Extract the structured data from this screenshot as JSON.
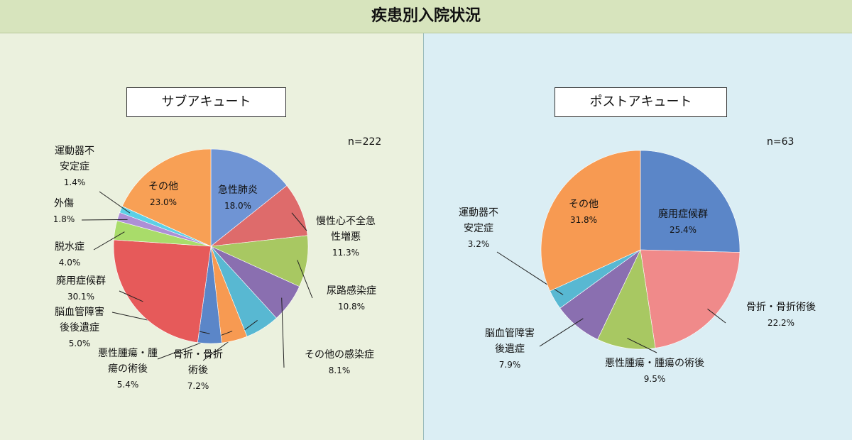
{
  "title": "疾患別入院状況",
  "chart_data": [
    {
      "type": "pie",
      "title": "サブアキュート",
      "note": "n=222",
      "categories": [
        "急性肺炎",
        "慢性心不全急\n性増悪",
        "尿路感染症",
        "その他の感染症",
        "骨折・骨折\n術後",
        "悪性腫瘍・腫\n瘍の術後",
        "脳血管障害\n後後遺症",
        "廃用症候群",
        "脱水症",
        "外傷",
        "運動器不\n安定症",
        "その他"
      ],
      "values": [
        18.0,
        11.3,
        10.8,
        8.1,
        7.2,
        5.4,
        5.0,
        30.1,
        4.0,
        1.8,
        1.4,
        23.0
      ],
      "value_labels": [
        "18.0%",
        "11.3%",
        "10.8%",
        "8.1%",
        "7.2%",
        "5.4%",
        "5.0%",
        "30.1%",
        "4.0%",
        "1.8%",
        "1.4%",
        "23.0%"
      ],
      "colors": [
        "#6f94d4",
        "#de6b6b",
        "#a8c862",
        "#8a6fb0",
        "#58b8d2",
        "#f79a52",
        "#5b86c8",
        "#e65a5a",
        "#a9dc6a",
        "#ad8fd6",
        "#5cd0e6",
        "#f8a055"
      ]
    },
    {
      "type": "pie",
      "title": "ポストアキュート",
      "note": "n=63",
      "categories": [
        "廃用症候群",
        "骨折・骨折術後",
        "悪性腫瘍・腫瘍の術後",
        "脳血管障害\n後遺症",
        "運動器不\n安定症",
        "その他"
      ],
      "values": [
        25.4,
        22.2,
        9.5,
        7.9,
        3.2,
        31.8
      ],
      "value_labels": [
        "25.4%",
        "22.2%",
        "9.5%",
        "7.9%",
        "3.2%",
        "31.8%"
      ],
      "colors": [
        "#5b86c8",
        "#f08a8a",
        "#a8c862",
        "#8a6fb0",
        "#58b8d2",
        "#f79a52"
      ]
    }
  ]
}
